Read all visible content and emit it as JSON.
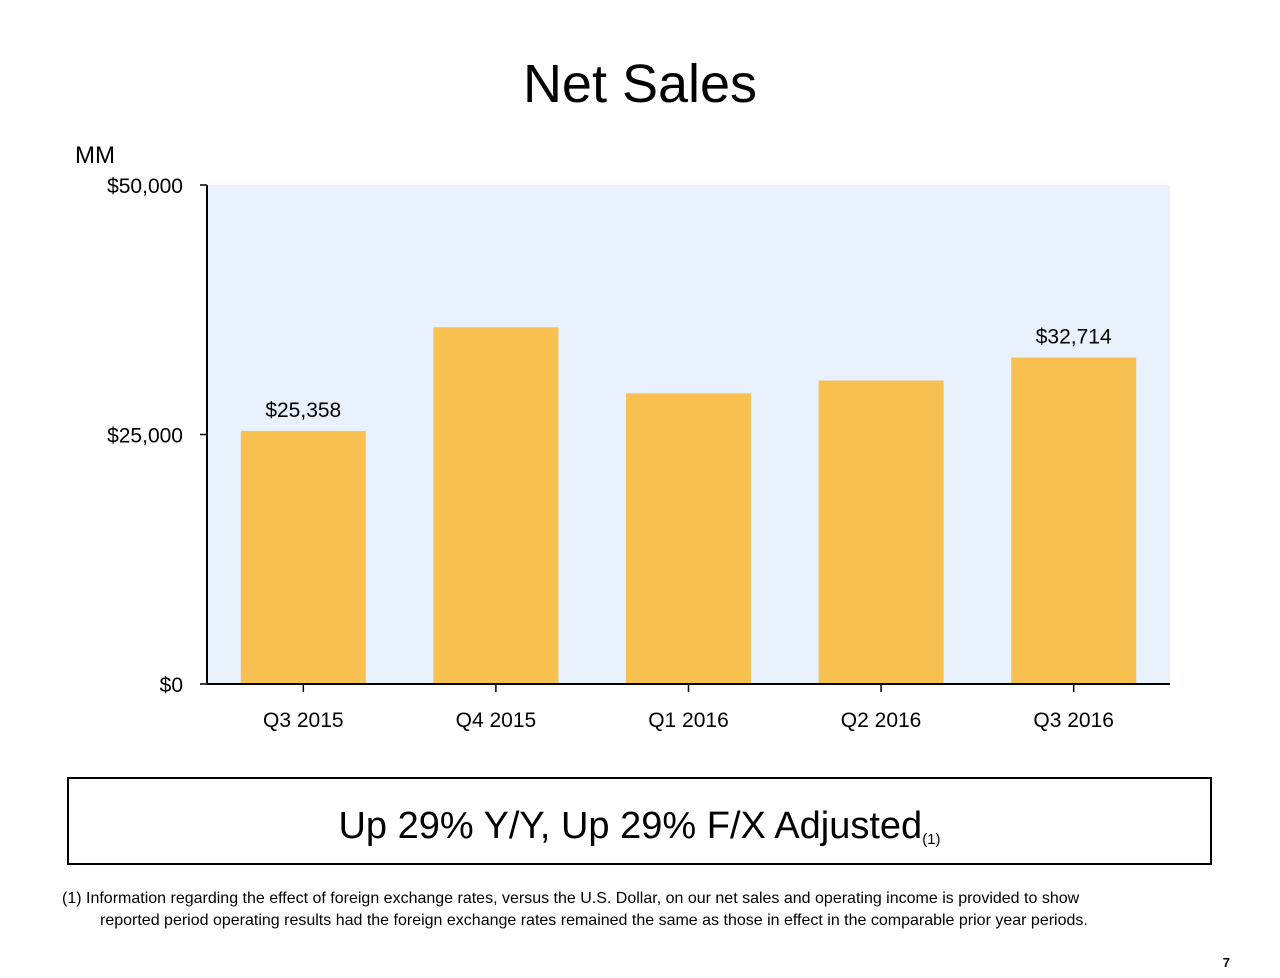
{
  "slide": {
    "title": "Net Sales",
    "headline": "Up 29% Y/Y, Up 29% F/X Adjusted",
    "headline_note": "(1)",
    "footnote_line1": "(1) Information regarding the effect of foreign exchange rates, versus the U.S. Dollar, on our net sales and operating income is provided to show",
    "footnote_line2": "reported period operating results had the foreign exchange rates remained the same as those in effect in the comparable prior year periods.",
    "page_number": "7"
  },
  "chart_data": {
    "type": "bar",
    "title": "Net Sales",
    "ylabel": "MM",
    "xlabel": "",
    "ylim": [
      0,
      50000
    ],
    "yticks": [
      0,
      25000,
      50000
    ],
    "ytick_labels": [
      "$0",
      "$25,000",
      "$50,000"
    ],
    "categories": [
      "Q3 2015",
      "Q4 2015",
      "Q1 2016",
      "Q2 2016",
      "Q3 2016"
    ],
    "values": [
      25358,
      35746,
      29128,
      30404,
      32714
    ],
    "data_labels": [
      "$25,358",
      "",
      "",
      "",
      "$32,714"
    ],
    "grid": false,
    "legend": "none",
    "colors": {
      "bar": "#F8BF51",
      "plot_background": "#E9F1FC",
      "axis": "#000000"
    }
  }
}
